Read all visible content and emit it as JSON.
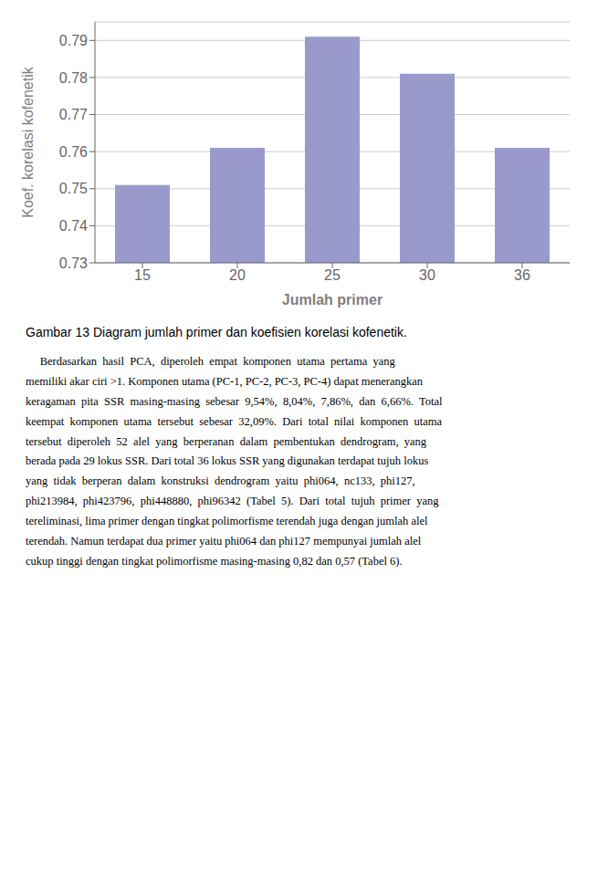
{
  "chart_data": {
    "type": "bar",
    "title": "Gambar 13 Diagram jumlah primer dan koefisien korelasi kofenetik.",
    "x_label": "Jumlah primer",
    "y_label": "Koef. korelasi kofenetik",
    "categories": [
      "15",
      "20",
      "25",
      "30",
      "36"
    ],
    "values": [
      0.751,
      0.761,
      0.791,
      0.781,
      0.761
    ],
    "color": "#9999cc",
    "ylim": [
      0.73,
      0.795
    ],
    "yticks": [
      0.73,
      0.74,
      0.75,
      0.76,
      0.77,
      0.78,
      0.79
    ],
    "grid": true,
    "annotations": [
      "     Berdasarkan  hasil  PCA,  diperoleh  empat  komponen  utama  pertama  yang",
      "memiliki akar ciri >1. Komponen utama (PC-1, PC-2, PC-3, PC-4) dapat menerangkan",
      "keragaman  pita  SSR  masing-masing  sebesar  9,54%,  8,04%,  7,86%,  dan  6,66%.  Total",
      "keempat  komponen  utama  tersebut  sebesar  32,09%.  Dari  total  nilai  komponen  utama",
      "tersebut  diperoleh  52  alel  yang  berperanan  dalam  pembentukan  dendrogram,  yang",
      "berada pada 29 lokus SSR. Dari total 36 lokus SSR yang digunakan terdapat tujuh lokus",
      "yang  tidak  berperan  dalam  konstruksi  dendrogram  yaitu  phi064,  nc133,  phi127,",
      "phi213984,  phi423796,  phi448880,  phi96342  (Tabel  5).  Dari  total  tujuh  primer  yang",
      "tereliminasi, lima primer dengan tingkat polimorfisme terendah juga dengan jumlah alel",
      "terendah. Namun terdapat dua primer yaitu phi064 dan phi127 mempunyai jumlah alel",
      "cukup tinggi dengan tingkat polimorfisme masing-masing 0,82 dan 0,57 (Tabel 6)."
    ]
  }
}
